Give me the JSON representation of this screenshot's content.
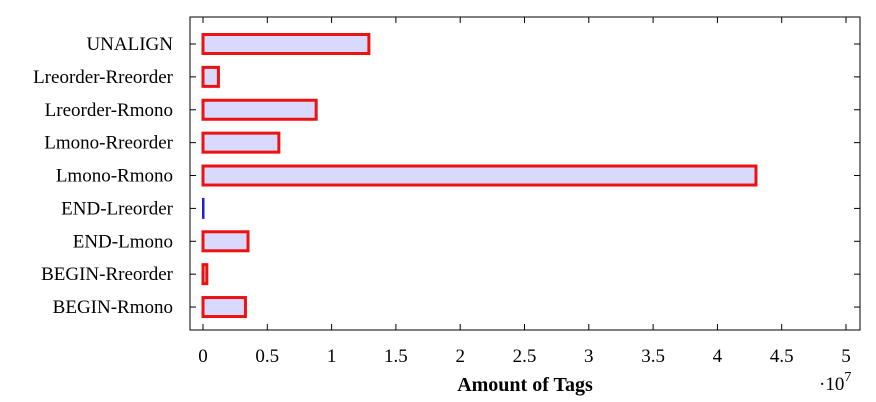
{
  "chart_data": {
    "type": "bar",
    "orientation": "horizontal",
    "categories": [
      "BEGIN-Rmono",
      "BEGIN-Rreorder",
      "END-Lmono",
      "END-Lreorder",
      "Lmono-Rmono",
      "Lmono-Rreorder",
      "Lreorder-Rmono",
      "Lreorder-Rreorder",
      "UNALIGN"
    ],
    "values": [
      3300000,
      300000,
      3500000,
      20000,
      43000000,
      5900000,
      8800000,
      1200000,
      12900000
    ],
    "xlabel": "Amount of Tags",
    "x_scale_label": "·10",
    "x_scale_exponent": "7",
    "xlim": [
      -0.1,
      5.1
    ],
    "x_ticks": [
      0,
      0.5,
      1,
      1.5,
      2,
      2.5,
      3,
      3.5,
      4,
      4.5,
      5
    ],
    "x_tick_labels": [
      "0",
      "0.5",
      "1",
      "1.5",
      "2",
      "2.5",
      "3",
      "3.5",
      "4",
      "4.5",
      "5"
    ],
    "x_scale_factor": 10000000,
    "grid": false,
    "colors": {
      "bar_fill": "#d9d9ff",
      "bar_edge": "#ee1111",
      "thin_bar_edge": "#1f1fd0",
      "axis": "#000000"
    }
  }
}
